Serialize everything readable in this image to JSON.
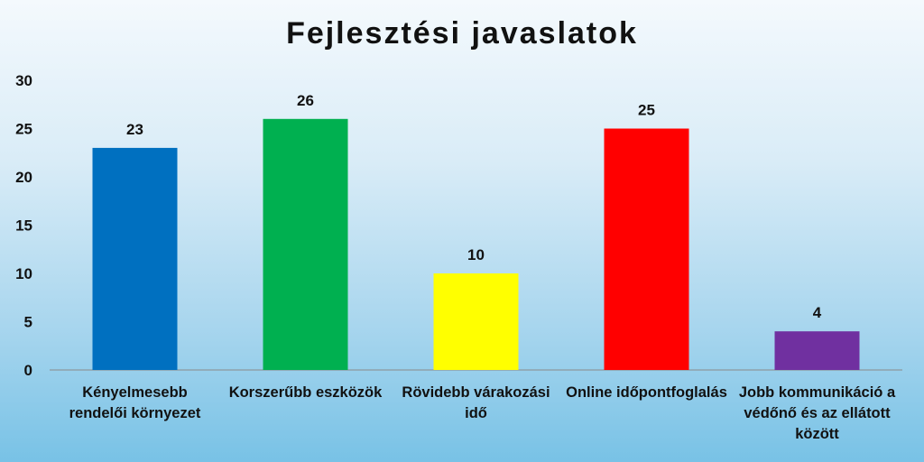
{
  "chart_data": {
    "type": "bar",
    "title": "Fejlesztési javaslatok",
    "categories": [
      "Kényelmesebb rendelői környezet",
      "Korszerűbb eszközök",
      "Rövidebb várakozási idő",
      "Online időpontfoglalás",
      "Jobb kommunikáció a védőnő és az ellátott között"
    ],
    "values": [
      23,
      26,
      10,
      25,
      4
    ],
    "colors": [
      "#0070c0",
      "#00b050",
      "#ffff00",
      "#ff0000",
      "#7030a0"
    ],
    "ylim": [
      0,
      30
    ],
    "yticks": [
      0,
      5,
      10,
      15,
      20,
      25,
      30
    ],
    "grid": false,
    "legend": "none",
    "data_labels": true
  }
}
